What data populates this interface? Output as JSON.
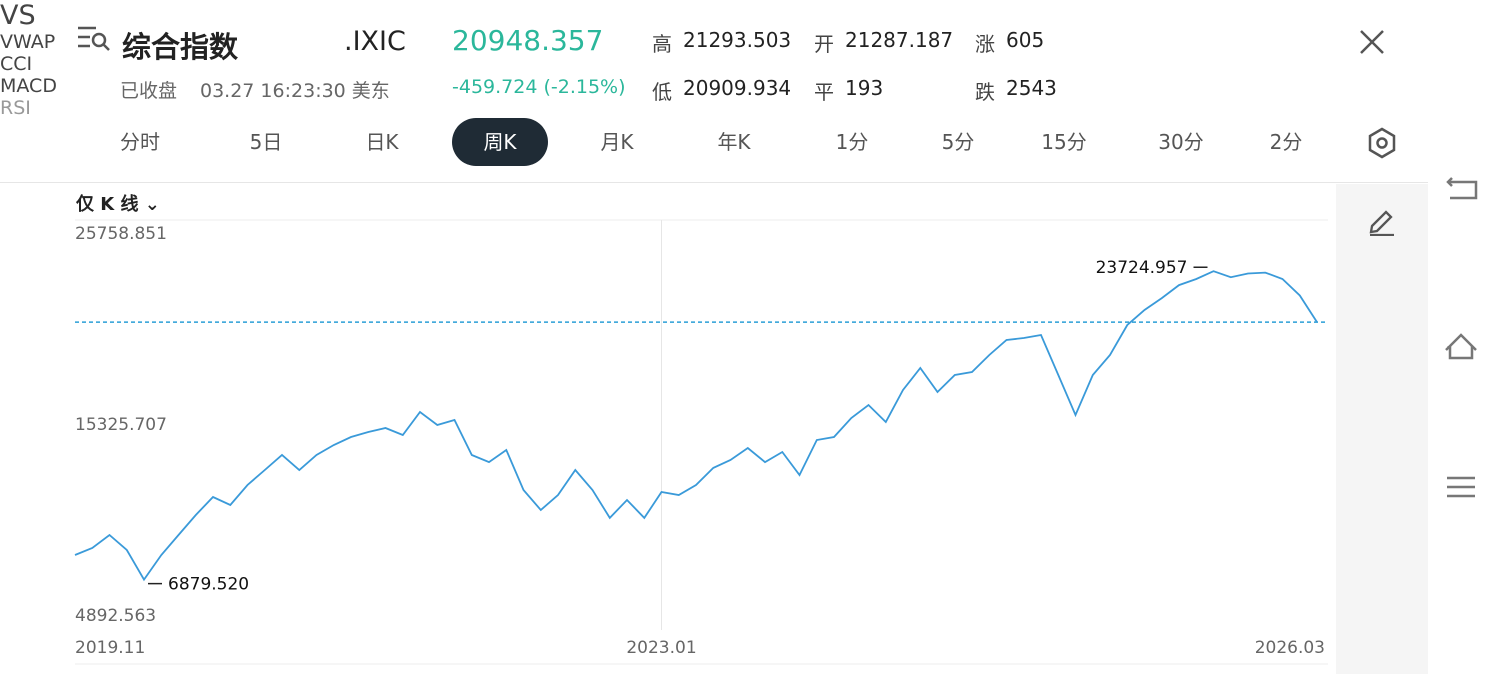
{
  "header": {
    "title": "综合指数",
    "code": ".IXIC",
    "price": "20948.357",
    "change": "-459.724 (-2.15%)",
    "status": "已收盘",
    "time": "03.27 16:23:30 美东",
    "stats": [
      {
        "label": "高",
        "value": "21293.503"
      },
      {
        "label": "开",
        "value": "21287.187"
      },
      {
        "label": "涨",
        "value": "605"
      },
      {
        "label": "低",
        "value": "20909.934"
      },
      {
        "label": "平",
        "value": "193"
      },
      {
        "label": "跌",
        "value": "2543"
      }
    ]
  },
  "tabs": [
    "分时",
    "5日",
    "日K",
    "周K",
    "月K",
    "年K",
    "1分",
    "5分",
    "15分",
    "30分",
    "2分"
  ],
  "active_tab": "周K",
  "chart_mode": "仅 K 线",
  "side_buttons": [
    "VS",
    "VWAP",
    "CCI",
    "MACD",
    "RSI"
  ],
  "chart_data": {
    "type": "line",
    "categories": [
      "2019.11",
      null,
      null,
      null,
      null,
      null,
      null,
      null,
      null,
      null,
      null,
      null,
      null,
      null,
      null,
      null,
      null,
      null,
      null,
      null,
      null,
      null,
      null,
      null,
      null,
      null,
      null,
      null,
      null,
      null,
      null,
      null,
      null,
      null,
      "2023.01",
      null,
      null,
      null,
      null,
      null,
      null,
      null,
      null,
      null,
      null,
      null,
      null,
      null,
      null,
      null,
      null,
      null,
      null,
      null,
      null,
      null,
      null,
      null,
      null,
      null,
      null,
      null,
      null,
      null,
      null,
      null,
      null,
      null,
      null,
      null,
      null,
      null,
      "2026.03"
    ],
    "values": [
      8225,
      8608,
      9317,
      8500,
      6879.52,
      8225,
      9317,
      10410,
      11394,
      10957,
      12050,
      12870,
      13688,
      12870,
      13688,
      14234,
      14670,
      14944,
      15160,
      14780,
      16036,
      15325,
      15600,
      13688,
      13300,
      13960,
      11776,
      10680,
      11500,
      12870,
      11776,
      10250,
      11230,
      10250,
      11667,
      11500,
      12050,
      12980,
      13415,
      14070,
      13300,
      13850,
      12596,
      14507,
      14670,
      15708,
      16420,
      15490,
      17238,
      18440,
      17130,
      18057,
      18220,
      19150,
      19969,
      20077,
      20240,
      18057,
      15873,
      18057,
      19150,
      20788,
      21610,
      22260,
      22970,
      23300,
      23724.957,
      23400,
      23600,
      23650,
      23300,
      22400,
      20948.357
    ],
    "value_labels": [
      null,
      null,
      null,
      null,
      "6879.520",
      null,
      null,
      null,
      null,
      null,
      null,
      null,
      null,
      null,
      null,
      null,
      null,
      null,
      null,
      null,
      null,
      null,
      null,
      null,
      null,
      null,
      null,
      null,
      null,
      null,
      null,
      null,
      null,
      null,
      null,
      null,
      null,
      null,
      null,
      null,
      null,
      null,
      null,
      null,
      null,
      null,
      null,
      null,
      null,
      null,
      null,
      null,
      null,
      null,
      null,
      null,
      null,
      null,
      null,
      null,
      null,
      null,
      null,
      null,
      null,
      null,
      "23724.957",
      null,
      null,
      null,
      null,
      null,
      null
    ],
    "color": "#3a9ad9",
    "hline": {
      "value": 20948.357,
      "color": "#2a9fd6"
    },
    "ylim": [
      4892.563,
      25758.851
    ],
    "yticks": [
      4892.563,
      15325.707,
      25758.851
    ],
    "grid": false
  }
}
